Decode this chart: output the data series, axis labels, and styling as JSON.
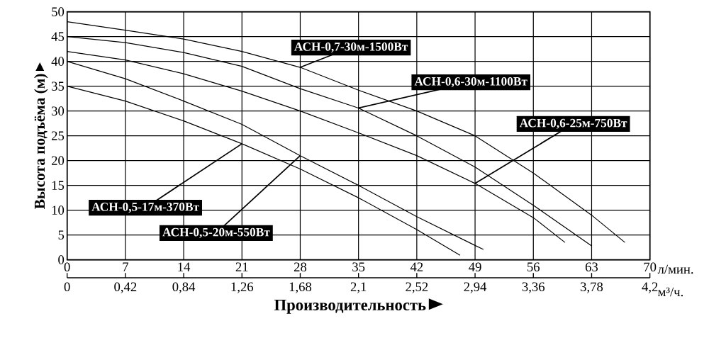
{
  "chart_data": {
    "type": "line",
    "xlabel": "Производительность",
    "ylabel": "Высота подъёма (м)",
    "xlim": [
      0,
      70
    ],
    "xticks": [
      0,
      7,
      14,
      21,
      28,
      35,
      42,
      49,
      56,
      63,
      70
    ],
    "x2lim": [
      0,
      4.2
    ],
    "x2ticks": [
      0,
      {
        "value": 0.42,
        "label": "0,42"
      },
      {
        "value": 0.84,
        "label": "0,84"
      },
      {
        "value": 1.26,
        "label": "1,26"
      },
      {
        "value": 1.68,
        "label": "1,68"
      },
      {
        "value": 2.1,
        "label": "2,1"
      },
      {
        "value": 2.52,
        "label": "2,52"
      },
      {
        "value": 2.94,
        "label": "2,94"
      },
      {
        "value": 3.36,
        "label": "3,36"
      },
      {
        "value": 3.78,
        "label": "3,78"
      },
      {
        "value": 4.2,
        "label": "4,2"
      }
    ],
    "ylim": [
      0,
      50
    ],
    "yticks": [
      0,
      5,
      10,
      15,
      20,
      25,
      30,
      35,
      40,
      45,
      50
    ],
    "grid": true,
    "marker": "none",
    "line_style": "solid",
    "annotations": [
      "л/мин.",
      "м³/ч."
    ],
    "series": [
      {
        "name": "АСН-0,7-30м-1500Вт",
        "color": "#000000",
        "x": [
          0,
          7,
          14,
          21,
          28,
          35,
          42,
          49,
          56,
          63,
          67
        ],
        "values": [
          48,
          46.3,
          44.5,
          42,
          38.8,
          34.2,
          30,
          25,
          17.5,
          9,
          3.5
        ]
      },
      {
        "name": "АСН-0,6-30м-1100Вт",
        "color": "#000000",
        "x": [
          0,
          7,
          14,
          21,
          28,
          35,
          42,
          49,
          56,
          63
        ],
        "values": [
          45,
          43.8,
          41.8,
          39,
          34.5,
          30.6,
          25,
          18.7,
          11,
          2.8
        ]
      },
      {
        "name": "АСН-0,6-25м-750Вт",
        "color": "#000000",
        "x": [
          0,
          7,
          14,
          21,
          28,
          35,
          42,
          49,
          56,
          59.8
        ],
        "values": [
          42,
          40.3,
          37.5,
          34,
          30,
          25.6,
          21,
          15.4,
          8.5,
          3.5
        ]
      },
      {
        "name": "АСН-0,5-20м-550Вт",
        "color": "#000000",
        "x": [
          0,
          7,
          14,
          21,
          28,
          35,
          42,
          49,
          50
        ],
        "values": [
          40,
          36.5,
          32,
          27.3,
          21,
          15,
          8.7,
          2.9,
          2.1
        ]
      },
      {
        "name": "АСН-0,5-17м-370Вт",
        "color": "#000000",
        "x": [
          0,
          7,
          14,
          21,
          28,
          35,
          42,
          47.2
        ],
        "values": [
          35,
          32,
          28,
          23.4,
          18.3,
          12.5,
          6.1,
          0.9
        ]
      }
    ]
  }
}
